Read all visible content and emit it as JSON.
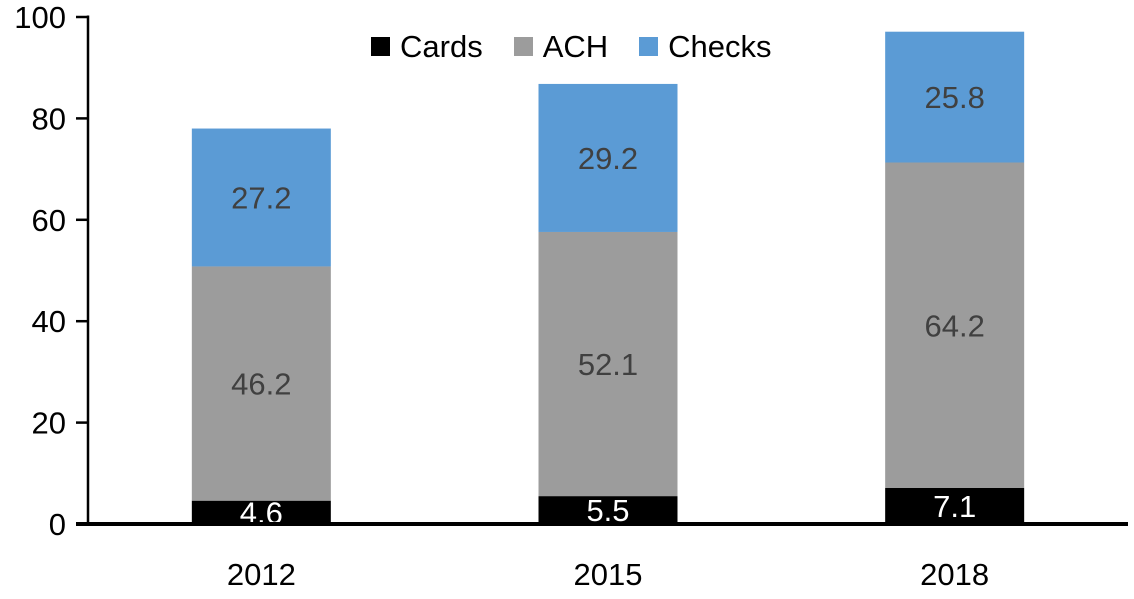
{
  "chart_data": {
    "type": "bar",
    "stacked": true,
    "categories": [
      "2012",
      "2015",
      "2018"
    ],
    "series": [
      {
        "name": "Cards",
        "color": "#000000",
        "label_color": "#FFFFFF",
        "values": [
          4.6,
          5.5,
          7.1
        ]
      },
      {
        "name": "ACH",
        "color": "#9C9C9C",
        "label_color": "#404040",
        "values": [
          46.2,
          52.1,
          64.2
        ]
      },
      {
        "name": "Checks",
        "color": "#5B9BD5",
        "label_color": "#404040",
        "values": [
          27.2,
          29.2,
          25.8
        ]
      }
    ],
    "title": "",
    "xlabel": "",
    "ylabel": "",
    "ylim": [
      0,
      100
    ],
    "yticks": [
      0,
      20,
      40,
      60,
      80,
      100
    ],
    "grid": false,
    "legend_position": "top-center",
    "data_labels": true,
    "axis_color": "#000000"
  }
}
